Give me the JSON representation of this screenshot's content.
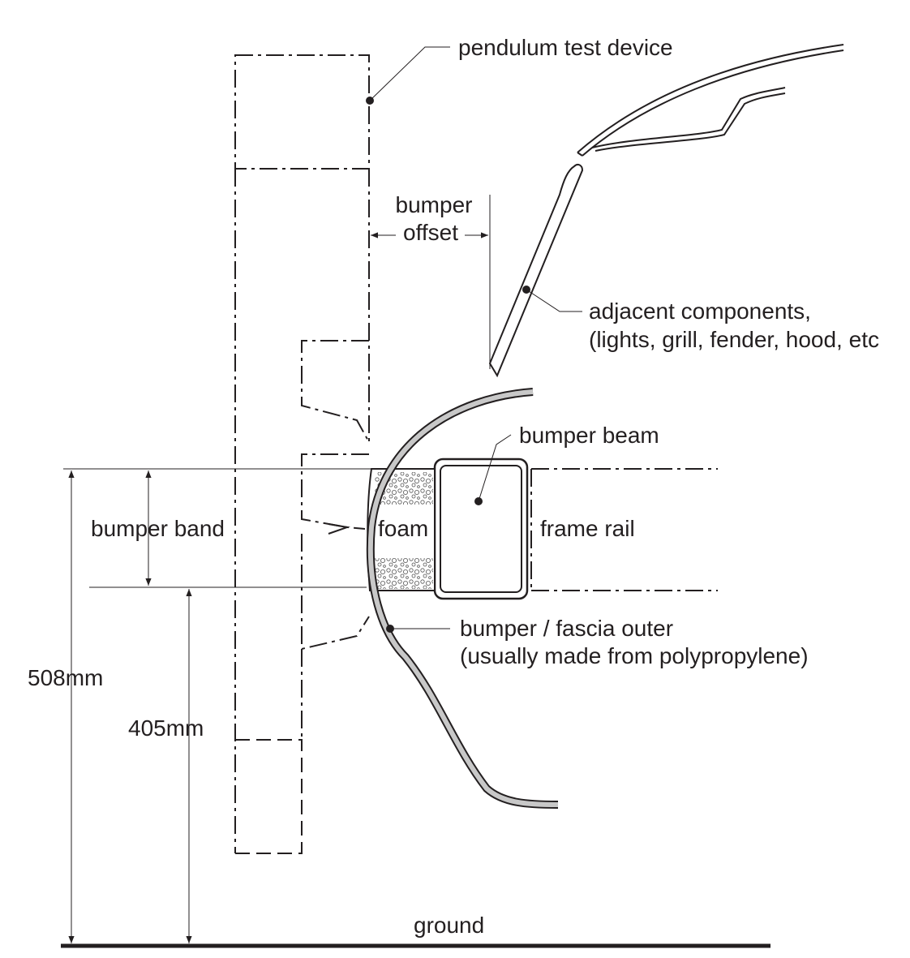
{
  "labels": {
    "pendulum": "pendulum test device",
    "offset_line1": "bumper",
    "offset_line2": "offset",
    "adjacent_line1": "adjacent components,",
    "adjacent_line2": "(lights, grill, fender, hood, etc",
    "bumper_beam": "bumper beam",
    "bumper_band": "bumper band",
    "foam": "foam",
    "frame_rail": "frame rail",
    "fascia_line1": "bumper / fascia outer",
    "fascia_line2": "(usually made from polypropylene)",
    "dim_508": "508mm",
    "dim_405": "405mm",
    "ground": "ground"
  },
  "colors": {
    "ink": "#231f20",
    "fascia_fill": "#c8c8c8"
  }
}
